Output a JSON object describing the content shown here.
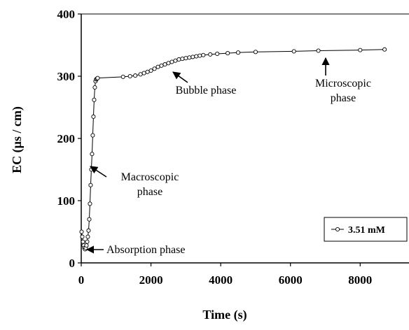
{
  "chart_data": {
    "type": "line",
    "xlabel": "Time (s)",
    "ylabel": "EC (µs / cm)",
    "xlim": [
      0,
      9400
    ],
    "ylim": [
      0,
      400
    ],
    "xticks": [
      0,
      2000,
      4000,
      6000,
      8000
    ],
    "yticks": [
      0,
      100,
      200,
      300,
      400
    ],
    "grid": false,
    "legend_position": "bottom-right",
    "series": [
      {
        "name": "3.51 mM",
        "marker": "open-circle",
        "x": [
          10,
          30,
          50,
          70,
          90,
          110,
          130,
          150,
          170,
          190,
          210,
          230,
          250,
          270,
          290,
          310,
          330,
          350,
          370,
          390,
          410,
          430,
          450,
          470,
          1200,
          1400,
          1550,
          1700,
          1800,
          1900,
          2000,
          2100,
          2200,
          2300,
          2400,
          2500,
          2600,
          2700,
          2800,
          2900,
          3000,
          3100,
          3200,
          3300,
          3400,
          3500,
          3700,
          3900,
          4200,
          4500,
          5000,
          6100,
          6800,
          8000,
          8700
        ],
        "y": [
          50,
          42,
          34,
          28,
          24,
          22,
          24,
          28,
          34,
          42,
          52,
          70,
          95,
          125,
          150,
          175,
          205,
          235,
          262,
          282,
          292,
          295,
          296,
          297,
          299,
          300,
          301,
          303,
          305,
          307,
          309,
          312,
          315,
          317,
          319,
          321,
          323,
          325,
          327,
          328,
          329,
          330,
          331,
          332,
          333,
          334,
          335,
          336,
          337,
          338,
          339,
          340,
          341,
          342,
          343
        ]
      }
    ],
    "annotations": [
      {
        "lines": [
          "Absorption phase"
        ],
        "x": 150,
        "y": 25
      },
      {
        "lines": [
          "Macroscopic",
          "phase"
        ],
        "x": 330,
        "y": 150
      },
      {
        "lines": [
          "Bubble phase"
        ],
        "x": 2600,
        "y": 325
      },
      {
        "lines": [
          "Microscopic",
          "phase"
        ],
        "x": 6950,
        "y": 343
      }
    ]
  }
}
